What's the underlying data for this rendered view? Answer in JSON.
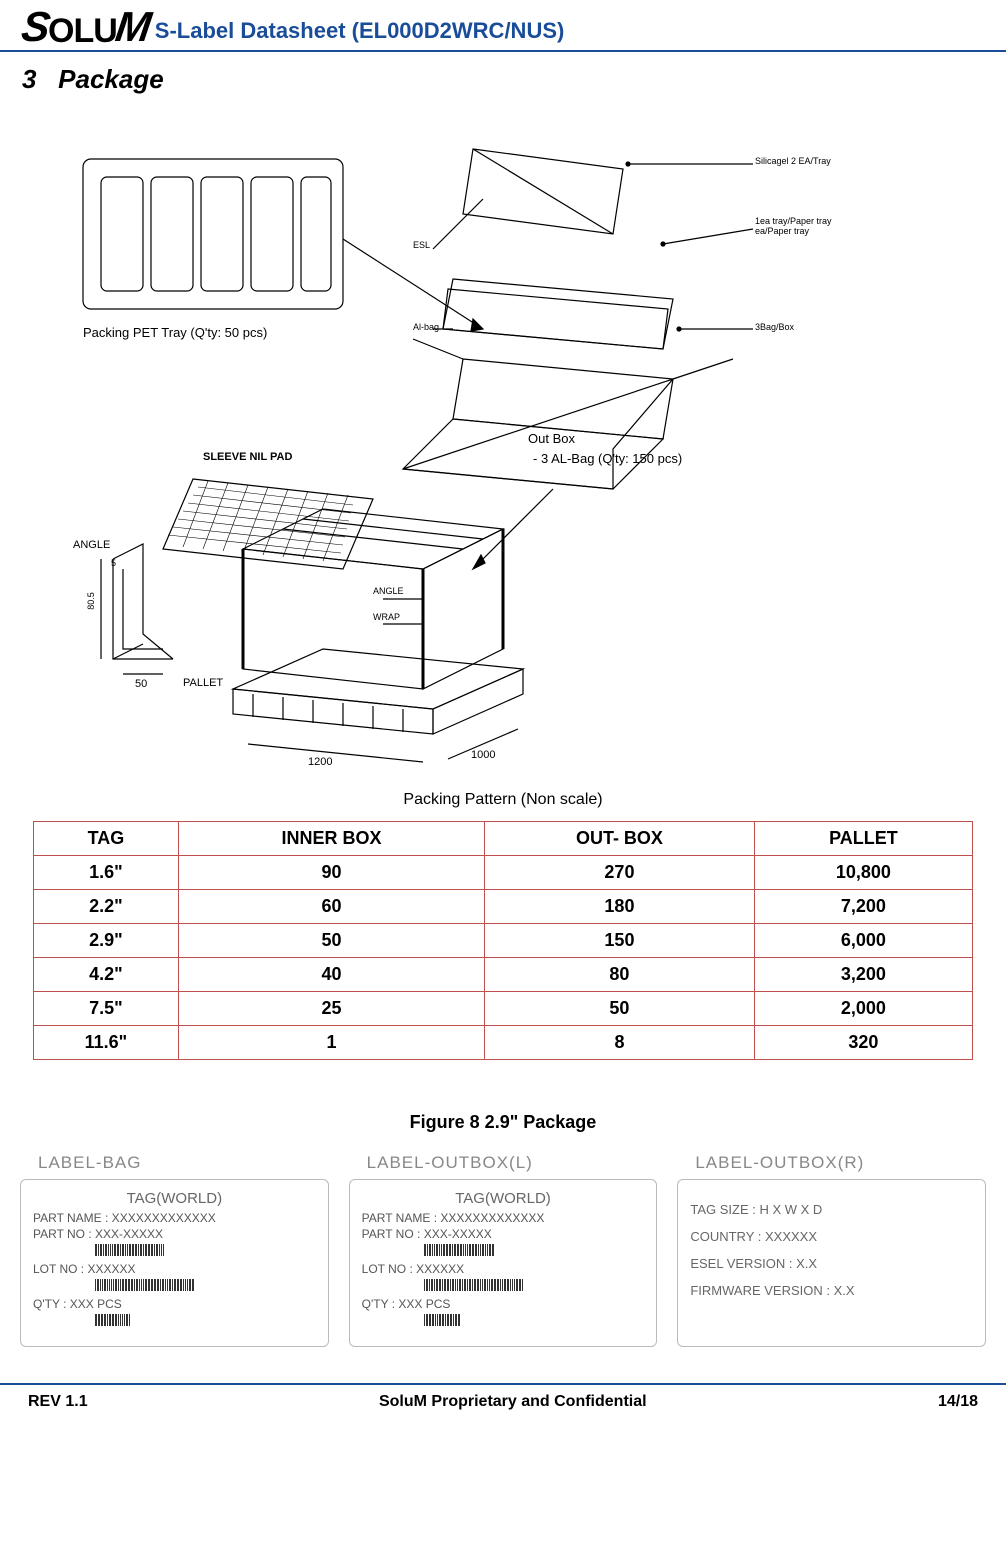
{
  "header": {
    "logo_s": "S",
    "logo_mid": "OLU",
    "logo_m": "M",
    "title": "S-Label Datasheet (EL000D2WRC/NUS)",
    "accent_color": "#1a4d99"
  },
  "section": {
    "number": "3",
    "title": "Package"
  },
  "diagram": {
    "pet_tray": "Packing PET Tray (Q'ty: 50 pcs)",
    "sleeve": "SLEEVE NIL PAD",
    "angle": "ANGLE",
    "pallet": "PALLET",
    "angle_wrap_a": "ANGLE",
    "angle_wrap_w": "WRAP",
    "outbox_title": "Out Box",
    "outbox_sub": "- 3 AL-Bag (Q'ty: 150 pcs)",
    "esl": "ESL",
    "albag": "Al-bag",
    "silica": "Silicagel 2 EA/Tray",
    "tray_note": "1ea tray/Paper tray ea/Paper tray",
    "box3": "3Bag/Box",
    "dim_1200": "1200",
    "dim_1000": "1000",
    "dim_50": "50",
    "dim_5": "5",
    "dim_80_5": "80.5",
    "caption": "Packing Pattern (Non scale)"
  },
  "tag_table": {
    "headers": [
      "TAG",
      "INNER BOX",
      "OUT- BOX",
      "PALLET"
    ],
    "rows": [
      [
        "1.6\"",
        "90",
        "270",
        "10,800"
      ],
      [
        "2.2\"",
        "60",
        "180",
        "7,200"
      ],
      [
        "2.9\"",
        "50",
        "150",
        "6,000"
      ],
      [
        "4.2\"",
        "40",
        "80",
        "3,200"
      ],
      [
        "7.5\"",
        "25",
        "50",
        "2,000"
      ],
      [
        "11.6\"",
        "1",
        "8",
        "320"
      ]
    ],
    "border_color": "#c0504d"
  },
  "figure_caption": "Figure 8 2.9\" Package",
  "label_boxes": {
    "bag": {
      "title": "LABEL-BAG",
      "header": "TAG(WORLD)",
      "partname": "PART NAME : XXXXXXXXXXXXX",
      "partno": "PART NO    : XXX-XXXXX",
      "lotno": "LOT NO      : XXXXXX",
      "qty": "Q'TY           : XXX PCS"
    },
    "outl": {
      "title": "LABEL-OUTBOX(L)",
      "header": "TAG(WORLD)",
      "partname": "PART NAME : XXXXXXXXXXXXX",
      "partno": "PART NO    : XXX-XXXXX",
      "lotno": "LOT NO      : XXXXXX",
      "qty": "Q'TY           : XXX PCS"
    },
    "outr": {
      "title": "LABEL-OUTBOX(R)",
      "tagsize": "TAG SIZE  : H X W X D",
      "country": "COUNTRY : XXXXXX",
      "esel": "ESEL VERSION : X.X",
      "fw": "FIRMWARE VERSION : X.X"
    }
  },
  "footer": {
    "rev": "REV 1.1",
    "confidential": "SoluM Proprietary and Confidential",
    "page": "14/18"
  }
}
